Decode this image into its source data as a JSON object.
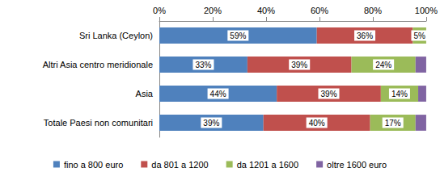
{
  "chart_data": {
    "type": "bar",
    "orientation": "horizontal",
    "stacked": true,
    "categories": [
      "Sri Lanka (Ceylon)",
      "Altri Asia centro meridionale",
      "Asia",
      "Totale Paesi non comunitari"
    ],
    "series": [
      {
        "name": "fino a 800 euro",
        "color": "#4f81bd",
        "values": [
          59,
          33,
          44,
          39
        ],
        "value_labels": [
          "59%",
          "33%",
          "44%",
          "39%"
        ]
      },
      {
        "name": "da 801 a 1200",
        "color": "#c0504d",
        "values": [
          36,
          39,
          39,
          40
        ],
        "value_labels": [
          "36%",
          "39%",
          "39%",
          "40%"
        ]
      },
      {
        "name": "da 1201 a 1600",
        "color": "#9bbb59",
        "values": [
          5,
          24,
          14,
          17
        ],
        "value_labels": [
          "5%",
          "24%",
          "14%",
          "17%"
        ]
      },
      {
        "name": "oltre 1600 euro",
        "color": "#8064a2",
        "values": [
          0,
          4,
          3,
          4
        ],
        "value_labels": [
          null,
          null,
          null,
          null
        ]
      }
    ],
    "xlim": [
      0,
      100
    ],
    "xticks": [
      {
        "value": 0,
        "label": "0%"
      },
      {
        "value": 20,
        "label": "20%"
      },
      {
        "value": 40,
        "label": "40%"
      },
      {
        "value": 60,
        "label": "60%"
      },
      {
        "value": 80,
        "label": "80%"
      },
      {
        "value": 100,
        "label": "100%"
      }
    ],
    "grid": false,
    "data_labels": true,
    "legend": "bottom"
  }
}
